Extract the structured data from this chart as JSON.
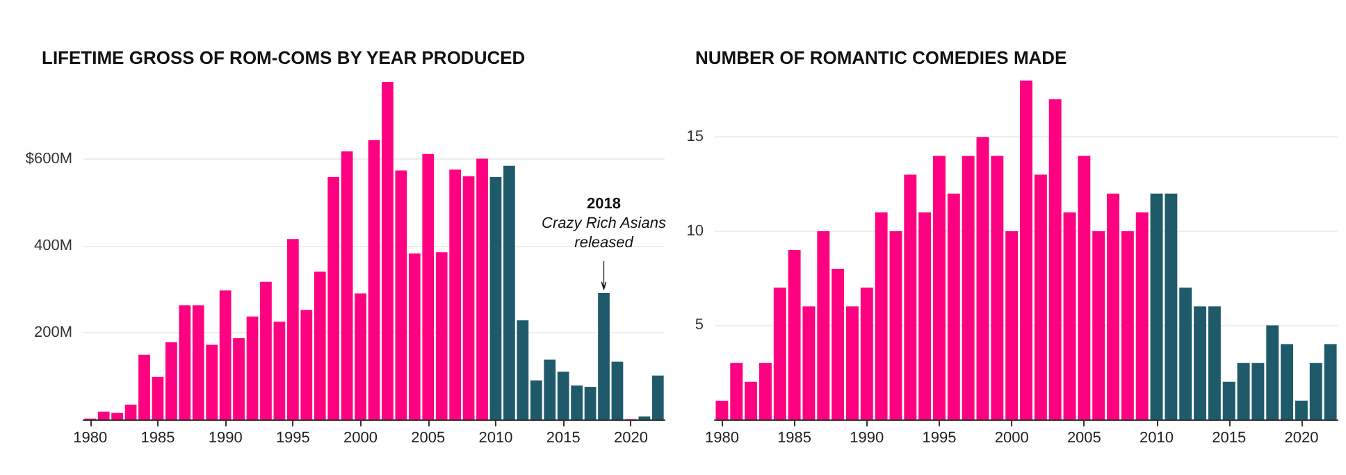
{
  "chart_data": [
    {
      "type": "bar",
      "title": "LIFETIME GROSS OF ROM-COMS BY YEAR PRODUCED",
      "x": [
        1980,
        1981,
        1982,
        1983,
        1984,
        1985,
        1986,
        1987,
        1988,
        1989,
        1990,
        1991,
        1992,
        1993,
        1994,
        1995,
        1996,
        1997,
        1998,
        1999,
        2000,
        2001,
        2002,
        2003,
        2004,
        2005,
        2006,
        2007,
        2008,
        2009,
        2010,
        2011,
        2012,
        2013,
        2014,
        2015,
        2016,
        2017,
        2018,
        2019,
        2020,
        2021,
        2022
      ],
      "series": [
        {
          "color": "#ff0080",
          "values": [
            2,
            18,
            15,
            34,
            149,
            98,
            178,
            263,
            263,
            172,
            297,
            187,
            237,
            317,
            225,
            415,
            252,
            340,
            558,
            617,
            290,
            643,
            777,
            573,
            382,
            611,
            385,
            575,
            560,
            600,
            null,
            null,
            null,
            null,
            null,
            null,
            null,
            null,
            null,
            null,
            1,
            null,
            null
          ]
        },
        {
          "color": "#1f5a6b",
          "values": [
            null,
            null,
            null,
            null,
            null,
            null,
            null,
            null,
            null,
            null,
            null,
            null,
            null,
            null,
            null,
            null,
            null,
            null,
            null,
            null,
            null,
            null,
            null,
            null,
            null,
            null,
            null,
            null,
            null,
            null,
            558,
            584,
            228,
            90,
            138,
            110,
            78,
            75,
            291,
            133,
            null,
            7,
            101
          ]
        }
      ],
      "xlim": [
        1979.5,
        2022.5
      ],
      "xticks": [
        1980,
        1985,
        1990,
        1995,
        2000,
        2005,
        2010,
        2015,
        2020
      ],
      "ylim": [
        0,
        780
      ],
      "yticks": [
        {
          "value": 200,
          "label": "200M"
        },
        {
          "value": 400,
          "label": "400M"
        },
        {
          "value": 600,
          "label": "$600M"
        }
      ],
      "grid": "y",
      "annotations": [
        "2018",
        {
          "text": "Crazy Rich Asians released",
          "x": 2018,
          "y": 291
        }
      ]
    },
    {
      "type": "bar",
      "title": "NUMBER OF ROMANTIC COMEDIES MADE",
      "x": [
        1980,
        1981,
        1982,
        1983,
        1984,
        1985,
        1986,
        1987,
        1988,
        1989,
        1990,
        1991,
        1992,
        1993,
        1994,
        1995,
        1996,
        1997,
        1998,
        1999,
        2000,
        2001,
        2002,
        2003,
        2004,
        2005,
        2006,
        2007,
        2008,
        2009,
        2010,
        2011,
        2012,
        2013,
        2014,
        2015,
        2016,
        2017,
        2018,
        2019,
        2020,
        2021,
        2022
      ],
      "series": [
        {
          "color": "#ff0080",
          "values": [
            1,
            3,
            2,
            3,
            7,
            9,
            6,
            10,
            8,
            6,
            7,
            11,
            10,
            13,
            11,
            14,
            12,
            14,
            15,
            14,
            10,
            18,
            13,
            17,
            11,
            14,
            10,
            12,
            10,
            11,
            null,
            null,
            null,
            null,
            null,
            null,
            null,
            null,
            null,
            null,
            null,
            null,
            null
          ]
        },
        {
          "color": "#1f5a6b",
          "values": [
            null,
            null,
            null,
            null,
            null,
            null,
            null,
            null,
            null,
            null,
            null,
            null,
            null,
            null,
            null,
            null,
            null,
            null,
            null,
            null,
            null,
            null,
            null,
            null,
            null,
            null,
            null,
            null,
            null,
            null,
            12,
            12,
            7,
            6,
            6,
            2,
            3,
            3,
            5,
            4,
            1,
            3,
            4
          ]
        }
      ],
      "xlim": [
        1979.5,
        2022.5
      ],
      "xticks": [
        1980,
        1985,
        1990,
        1995,
        2000,
        2005,
        2010,
        2015,
        2020
      ],
      "ylim": [
        0,
        18
      ],
      "yticks": [
        5,
        10,
        15
      ],
      "grid": "y"
    }
  ]
}
